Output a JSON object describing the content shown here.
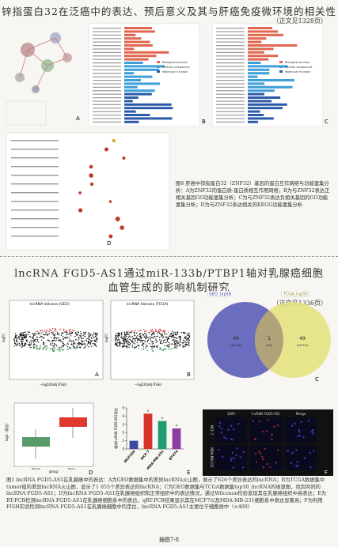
{
  "article1": {
    "title": "锌指蛋白32在泛癌中的表达、预后意义及其与肝癌免疫微环境的相关性",
    "see_page": "（正文见1328页）",
    "panels": [
      "A",
      "B",
      "C",
      "D"
    ],
    "go_legend": [
      "Biological process",
      "Cellular component",
      "Molecular function"
    ],
    "caption": "图8  肝癌中锌指蛋白32（ZNF32）基因的蛋白互作网络与功能富集分析：A为ZNF32的蛋白质-蛋白质相互作用网络；B为与ZNF32表达正相关基因GO功能富集分析；C为与ZNF32表达负相关基因的GO功能富集分析；D为与ZNF32表达相关的KEGG功能富集分析"
  },
  "article2": {
    "title_line1": "lncRNA FGD5-AS1通过miR-133b/PTBP1轴对乳腺癌细胞",
    "title_line2": "血管生成的影响机制研究",
    "see_page": "（正文见1336页）",
    "panels": [
      "A",
      "B",
      "C",
      "D",
      "E",
      "F"
    ],
    "volcano_a": {
      "title": "lncRNA Volcano (GEO)",
      "xlabel": "−log10(adj.P.Val)",
      "ylabel": "logFC"
    },
    "volcano_b": {
      "title": "lncRNA Volcano (TCGA)",
      "xlabel": "−log10(adj.P.Val)",
      "ylabel": "logFC"
    },
    "venn": {
      "sets": [
        "GEO_top50",
        "TCGA_top50"
      ],
      "left": "49",
      "left_pct": "(49.5%)",
      "both": "1",
      "both_pct": "(1%)",
      "right": "49",
      "right_pct": "(49.5%)"
    },
    "box": {
      "ylabel": "log2（表达）",
      "xlabel": "group",
      "groups": [
        "Normal",
        "Tumor"
      ]
    },
    "bar": {
      "ylabel": "相对lncRNA FGD5-AS1表达",
      "categories": [
        "MCF10A",
        "MCF-7",
        "MDA-MB-231",
        "BT474"
      ],
      "values": [
        1,
        4.3,
        3.4,
        2.5
      ],
      "colors": [
        "#3a4b9f",
        "#d8332b",
        "#1f9c72",
        "#8c3ea2"
      ],
      "ylim": [
        0,
        5
      ],
      "yticks": [
        0,
        1,
        2,
        3,
        4,
        5
      ],
      "marks": [
        "",
        "*",
        "*",
        "*"
      ]
    },
    "fish": {
      "columns": [
        "DAPI",
        "lncRNA FGD5-AS1",
        "Merge"
      ],
      "rows": [
        "MCF-7",
        "MDA-MB-231"
      ]
    },
    "caption": "图1  lncRNA FGD5-AS1在乳腺癌中的表达：A为GEO数据集中的差异lncRNA火山图，展示了626个差异表达的lncRNA；B为TCGA数据集中tumor组的差异lncRNA火山图，显示了1 655个差异表达的lncRNA；C为GEO数据集与TCGA数据集top50_lncRNA的维恩图，找到共同的lncRNA FGD5-AS1；D为lncRNA FGD5-AS1在乳腺癌组织和正常组织中的表达情况，通过Wilcoxon检验发现其在乳腺癌组织中高表达；E为RT-PCR检测lncRNA FGD5-AS1在乳腺癌细胞系中的表达，qRT-PCR结果显示其在MCF7以及MDA-MB-231细胞系中表达显著高；F为利用FISH实验检测lncRNA FGD5-AS1在乳腺癌细胞中的定位，lncRNA FGD5-AS1主要位于细胞质中（×400）"
  },
  "footer": "插图7-8"
}
